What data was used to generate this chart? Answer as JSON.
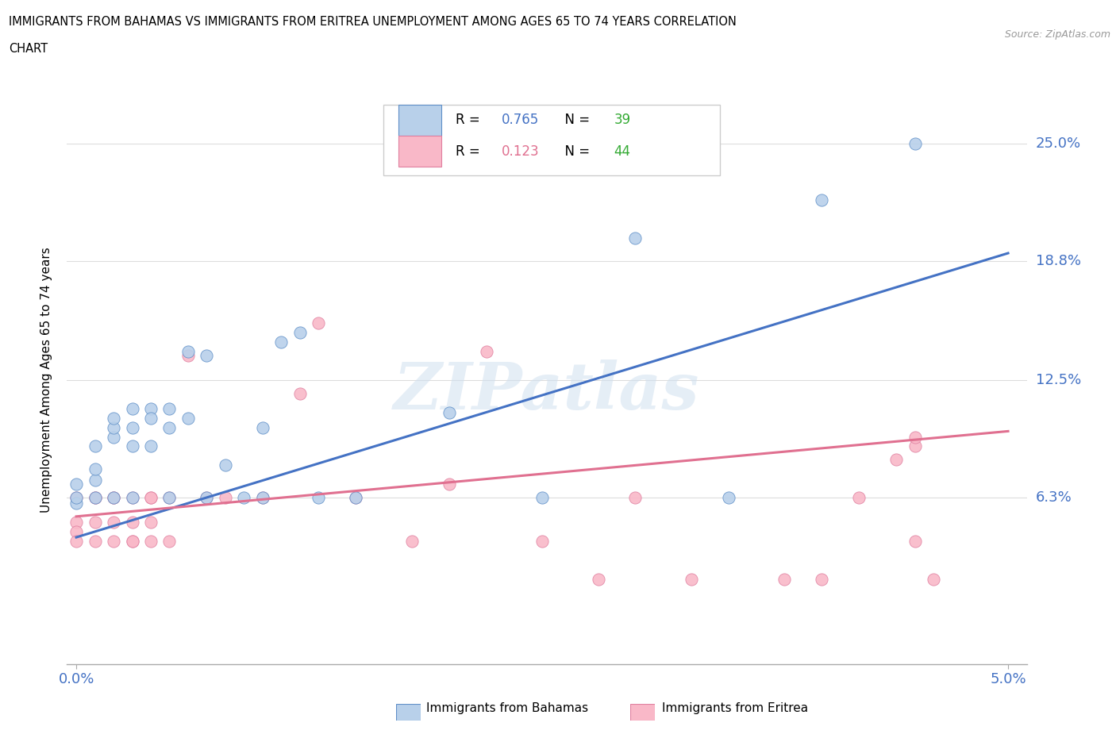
{
  "title_line1": "IMMIGRANTS FROM BAHAMAS VS IMMIGRANTS FROM ERITREA UNEMPLOYMENT AMONG AGES 65 TO 74 YEARS CORRELATION",
  "title_line2": "CHART",
  "source": "Source: ZipAtlas.com",
  "ylabel": "Unemployment Among Ages 65 to 74 years",
  "ytick_labels": [
    "6.3%",
    "12.5%",
    "18.8%",
    "25.0%"
  ],
  "ytick_values": [
    0.063,
    0.125,
    0.188,
    0.25
  ],
  "legend1_r": "0.765",
  "legend1_n": "39",
  "legend2_r": "0.123",
  "legend2_n": "44",
  "xlim": [
    -0.0005,
    0.051
  ],
  "ylim": [
    -0.025,
    0.275
  ],
  "bahamas_color": "#b8d0ea",
  "eritrea_color": "#f9b8c8",
  "bahamas_edge_color": "#6090c8",
  "eritrea_edge_color": "#e080a0",
  "bahamas_line_color": "#4472c4",
  "eritrea_line_color": "#e07090",
  "r_color": "#4472c4",
  "n_color": "#33aa33",
  "watermark": "ZIPatlas",
  "bahamas_x": [
    0.0,
    0.0,
    0.0,
    0.001,
    0.001,
    0.001,
    0.001,
    0.002,
    0.002,
    0.002,
    0.002,
    0.003,
    0.003,
    0.003,
    0.003,
    0.004,
    0.004,
    0.004,
    0.005,
    0.005,
    0.005,
    0.006,
    0.006,
    0.007,
    0.007,
    0.008,
    0.009,
    0.01,
    0.01,
    0.011,
    0.012,
    0.013,
    0.015,
    0.02,
    0.025,
    0.03,
    0.035,
    0.04,
    0.045
  ],
  "bahamas_y": [
    0.06,
    0.063,
    0.07,
    0.072,
    0.078,
    0.063,
    0.09,
    0.095,
    0.1,
    0.063,
    0.105,
    0.11,
    0.09,
    0.1,
    0.063,
    0.11,
    0.105,
    0.09,
    0.1,
    0.11,
    0.063,
    0.14,
    0.105,
    0.063,
    0.138,
    0.08,
    0.063,
    0.1,
    0.063,
    0.145,
    0.15,
    0.063,
    0.063,
    0.108,
    0.063,
    0.2,
    0.063,
    0.22,
    0.25
  ],
  "eritrea_x": [
    0.0,
    0.0,
    0.0,
    0.0,
    0.001,
    0.001,
    0.001,
    0.001,
    0.002,
    0.002,
    0.002,
    0.002,
    0.003,
    0.003,
    0.003,
    0.003,
    0.004,
    0.004,
    0.004,
    0.004,
    0.005,
    0.005,
    0.006,
    0.007,
    0.008,
    0.01,
    0.012,
    0.013,
    0.015,
    0.018,
    0.02,
    0.022,
    0.025,
    0.028,
    0.03,
    0.033,
    0.038,
    0.04,
    0.042,
    0.044,
    0.045,
    0.045,
    0.045,
    0.046
  ],
  "eritrea_y": [
    0.05,
    0.045,
    0.04,
    0.063,
    0.063,
    0.05,
    0.04,
    0.063,
    0.063,
    0.04,
    0.05,
    0.063,
    0.04,
    0.063,
    0.05,
    0.04,
    0.063,
    0.05,
    0.04,
    0.063,
    0.063,
    0.04,
    0.138,
    0.063,
    0.063,
    0.063,
    0.118,
    0.155,
    0.063,
    0.04,
    0.07,
    0.14,
    0.04,
    0.02,
    0.063,
    0.02,
    0.02,
    0.02,
    0.063,
    0.083,
    0.09,
    0.095,
    0.04,
    0.02
  ],
  "bahamas_trend_x": [
    0.0,
    0.05
  ],
  "bahamas_trend_y": [
    0.042,
    0.192
  ],
  "eritrea_trend_x": [
    0.0,
    0.05
  ],
  "eritrea_trend_y": [
    0.053,
    0.098
  ]
}
